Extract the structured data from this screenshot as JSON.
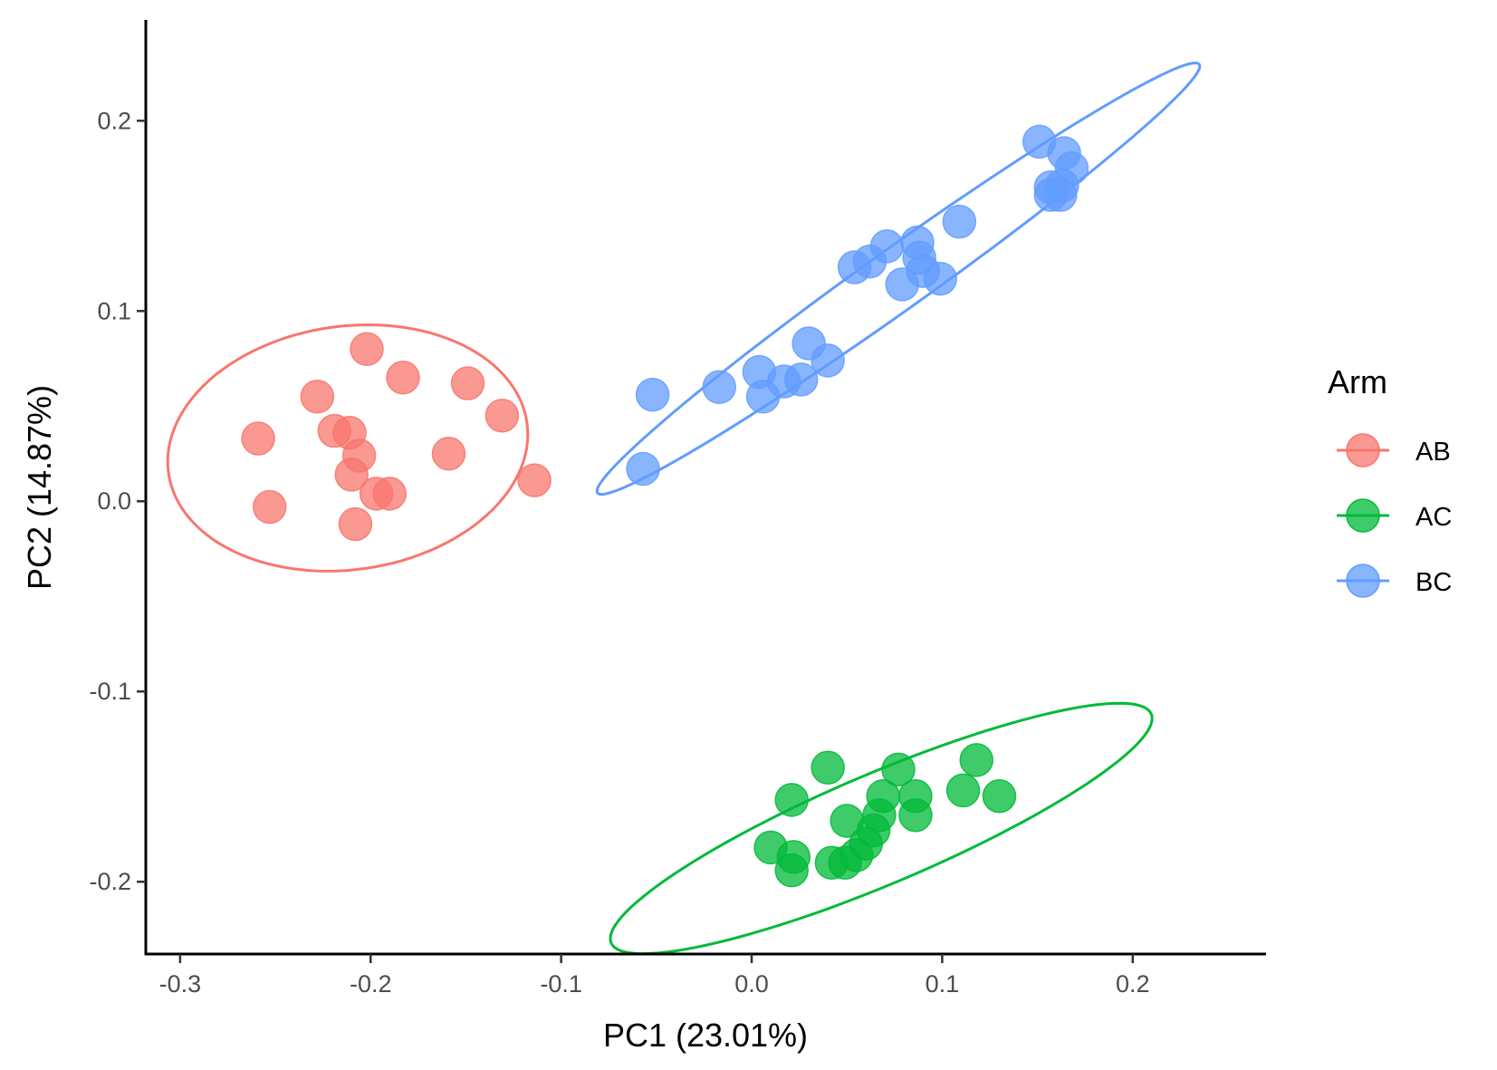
{
  "chart_data": {
    "type": "scatter",
    "xlabel": "PC1 (23.01%)",
    "ylabel": "PC2 (14.87%)",
    "xlim": [
      -0.318,
      0.27
    ],
    "ylim": [
      -0.238,
      0.253
    ],
    "xticks": [
      -0.3,
      -0.2,
      -0.1,
      0.0,
      0.1,
      0.2
    ],
    "xtick_labels": [
      "-0.3",
      "-0.2",
      "-0.1",
      "0.0",
      "0.1",
      "0.2"
    ],
    "yticks": [
      -0.2,
      -0.1,
      0.0,
      0.1,
      0.2
    ],
    "ytick_labels": [
      "-0.2",
      "-0.1",
      "0.0",
      "0.1",
      "0.2"
    ],
    "grid": false,
    "legend": {
      "title": "Arm",
      "position": "right"
    },
    "ellipses": "95% confidence ellipse per group",
    "series": [
      {
        "name": "AB",
        "color": "#F8766D",
        "points": [
          [
            -0.259,
            0.033
          ],
          [
            -0.253,
            -0.003
          ],
          [
            -0.228,
            0.055
          ],
          [
            -0.219,
            0.037
          ],
          [
            -0.211,
            0.036
          ],
          [
            -0.206,
            0.024
          ],
          [
            -0.21,
            0.014
          ],
          [
            -0.202,
            0.08
          ],
          [
            -0.197,
            0.004
          ],
          [
            -0.19,
            0.004
          ],
          [
            -0.208,
            -0.012
          ],
          [
            -0.183,
            0.065
          ],
          [
            -0.159,
            0.025
          ],
          [
            -0.149,
            0.062
          ],
          [
            -0.131,
            0.045
          ],
          [
            -0.114,
            0.011
          ]
        ],
        "ellipse": {
          "cx": -0.212,
          "cy": 0.028,
          "rx": 0.095,
          "ry": 0.064,
          "angle_deg": 8
        }
      },
      {
        "name": "AC",
        "color": "#00BA38",
        "points": [
          [
            0.021,
            -0.157
          ],
          [
            0.04,
            -0.14
          ],
          [
            0.077,
            -0.141
          ],
          [
            0.069,
            -0.155
          ],
          [
            0.086,
            -0.155
          ],
          [
            0.086,
            -0.165
          ],
          [
            0.111,
            -0.152
          ],
          [
            0.118,
            -0.136
          ],
          [
            0.13,
            -0.155
          ],
          [
            0.05,
            -0.168
          ],
          [
            0.067,
            -0.165
          ],
          [
            0.064,
            -0.173
          ],
          [
            0.06,
            -0.18
          ],
          [
            0.055,
            -0.186
          ],
          [
            0.049,
            -0.19
          ],
          [
            0.042,
            -0.19
          ],
          [
            0.01,
            -0.182
          ],
          [
            0.022,
            -0.187
          ],
          [
            0.021,
            -0.194
          ]
        ],
        "ellipse": {
          "cx": 0.068,
          "cy": -0.172,
          "rx": 0.154,
          "ry": 0.029,
          "angle_deg": 23
        }
      },
      {
        "name": "BC",
        "color": "#619CFF",
        "points": [
          [
            -0.057,
            0.017
          ],
          [
            -0.052,
            0.056
          ],
          [
            -0.017,
            0.06
          ],
          [
            0.004,
            0.068
          ],
          [
            0.006,
            0.055
          ],
          [
            0.017,
            0.063
          ],
          [
            0.026,
            0.064
          ],
          [
            0.03,
            0.083
          ],
          [
            0.04,
            0.074
          ],
          [
            0.054,
            0.123
          ],
          [
            0.062,
            0.126
          ],
          [
            0.071,
            0.134
          ],
          [
            0.079,
            0.114
          ],
          [
            0.087,
            0.136
          ],
          [
            0.088,
            0.128
          ],
          [
            0.09,
            0.121
          ],
          [
            0.099,
            0.117
          ],
          [
            0.109,
            0.147
          ],
          [
            0.151,
            0.189
          ],
          [
            0.164,
            0.183
          ],
          [
            0.168,
            0.175
          ],
          [
            0.157,
            0.165
          ],
          [
            0.163,
            0.166
          ],
          [
            0.157,
            0.161
          ],
          [
            0.162,
            0.161
          ]
        ],
        "ellipse": {
          "cx": 0.077,
          "cy": 0.117,
          "rx": 0.194,
          "ry": 0.016,
          "angle_deg": 35.5
        }
      }
    ]
  }
}
